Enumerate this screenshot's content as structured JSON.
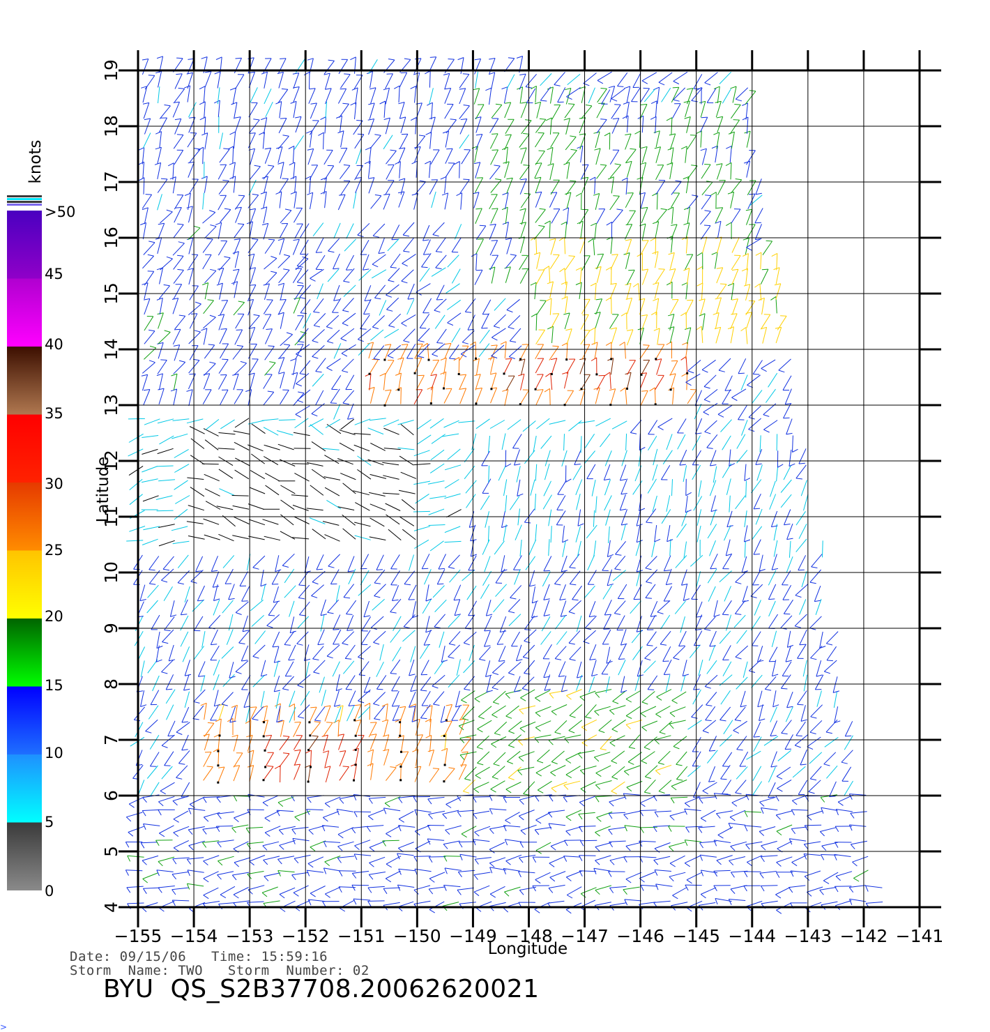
{
  "chart_data": {
    "type": "vector-field",
    "xlabel": "Longitude",
    "ylabel": "Latitude",
    "xlim": [
      -155,
      -141
    ],
    "ylim": [
      4,
      19
    ],
    "x_ticks": [
      "−155",
      "−154",
      "−153",
      "−152",
      "−151",
      "−150",
      "−149",
      "−148",
      "−147",
      "−146",
      "−145",
      "−144",
      "−143",
      "−142",
      "−141"
    ],
    "y_ticks": [
      "4",
      "5",
      "6",
      "7",
      "8",
      "9",
      "10",
      "11",
      "12",
      "13",
      "14",
      "15",
      "16",
      "17",
      "18",
      "19"
    ],
    "grid": true,
    "colorbar": {
      "unit": "knots",
      "labels": [
        "0",
        "5",
        "10",
        "15",
        "20",
        "25",
        "30",
        "35",
        "40",
        "45",
        ">50"
      ],
      "bands": [
        {
          "from": 0,
          "to": 5,
          "top": "#3a3a3a",
          "bottom": "#8a8a8a"
        },
        {
          "from": 5,
          "to": 10,
          "top": "#1e90ff",
          "bottom": "#00ffff"
        },
        {
          "from": 10,
          "to": 15,
          "top": "#0000ff",
          "bottom": "#1e6fff"
        },
        {
          "from": 15,
          "to": 20,
          "top": "#006400",
          "bottom": "#00ff00"
        },
        {
          "from": 20,
          "to": 25,
          "top": "#ffc400",
          "bottom": "#ffff00"
        },
        {
          "from": 25,
          "to": 30,
          "top": "#e63a00",
          "bottom": "#ff8c00"
        },
        {
          "from": 30,
          "to": 35,
          "top": "#ff0000",
          "bottom": "#ff2200"
        },
        {
          "from": 35,
          "to": 40,
          "top": "#3c0f00",
          "bottom": "#b07850"
        },
        {
          "from": 40,
          "to": 45,
          "top": "#b000d0",
          "bottom": "#ff00ff"
        },
        {
          "from": 45,
          "to": 50,
          "top": "#4a00c0",
          "bottom": "#9000c8"
        }
      ]
    },
    "wind_regions": [
      {
        "lon": [
          -155,
          -148
        ],
        "lat": [
          16.5,
          19.2
        ],
        "speed": 12,
        "dir": 70
      },
      {
        "lon": [
          -149,
          -144
        ],
        "lat": [
          15,
          18.5
        ],
        "speed": 16,
        "dir": 70
      },
      {
        "lon": [
          -148,
          -143.5
        ],
        "lat": [
          14,
          15.8
        ],
        "speed": 21,
        "dir": 75
      },
      {
        "lon": [
          -151,
          -145
        ],
        "lat": [
          13,
          14
        ],
        "speed": 28,
        "dir": 75
      },
      {
        "lon": [
          -148.5,
          -145.5
        ],
        "lat": [
          13.1,
          13.6
        ],
        "speed": 34,
        "dir": 75
      },
      {
        "lon": [
          -155,
          -152
        ],
        "lat": [
          13,
          16.5
        ],
        "speed": 13,
        "dir": 60
      },
      {
        "lon": [
          -155,
          -146
        ],
        "lat": [
          10.5,
          13
        ],
        "speed": 7,
        "dir": 200
      },
      {
        "lon": [
          -154,
          -150
        ],
        "lat": [
          10,
          12.5
        ],
        "speed": 3,
        "dir": 160
      },
      {
        "lon": [
          -149,
          -142
        ],
        "lat": [
          9.5,
          12.5
        ],
        "speed": 9,
        "dir": 250
      },
      {
        "lon": [
          -155,
          -141
        ],
        "lat": [
          7.5,
          10.5
        ],
        "speed": 11,
        "dir": 240
      },
      {
        "lon": [
          -154,
          -149
        ],
        "lat": [
          6,
          7.5
        ],
        "speed": 27,
        "dir": 70
      },
      {
        "lon": [
          -153,
          -151
        ],
        "lat": [
          6.2,
          7
        ],
        "speed": 33,
        "dir": 70
      },
      {
        "lon": [
          -149,
          -145
        ],
        "lat": [
          5.8,
          8
        ],
        "speed": 18,
        "dir": 210
      },
      {
        "lon": [
          -155,
          -141
        ],
        "lat": [
          4,
          6
        ],
        "speed": 13,
        "dir": 190
      }
    ]
  },
  "meta": {
    "date_line": "Date: 09/15/06   Time: 15:59:16",
    "storm_line": "Storm  Name: TWO   Storm  Number: 02",
    "product_id": "BYU  QS_S2B37708.20062620021"
  },
  "corner_mark": ">"
}
